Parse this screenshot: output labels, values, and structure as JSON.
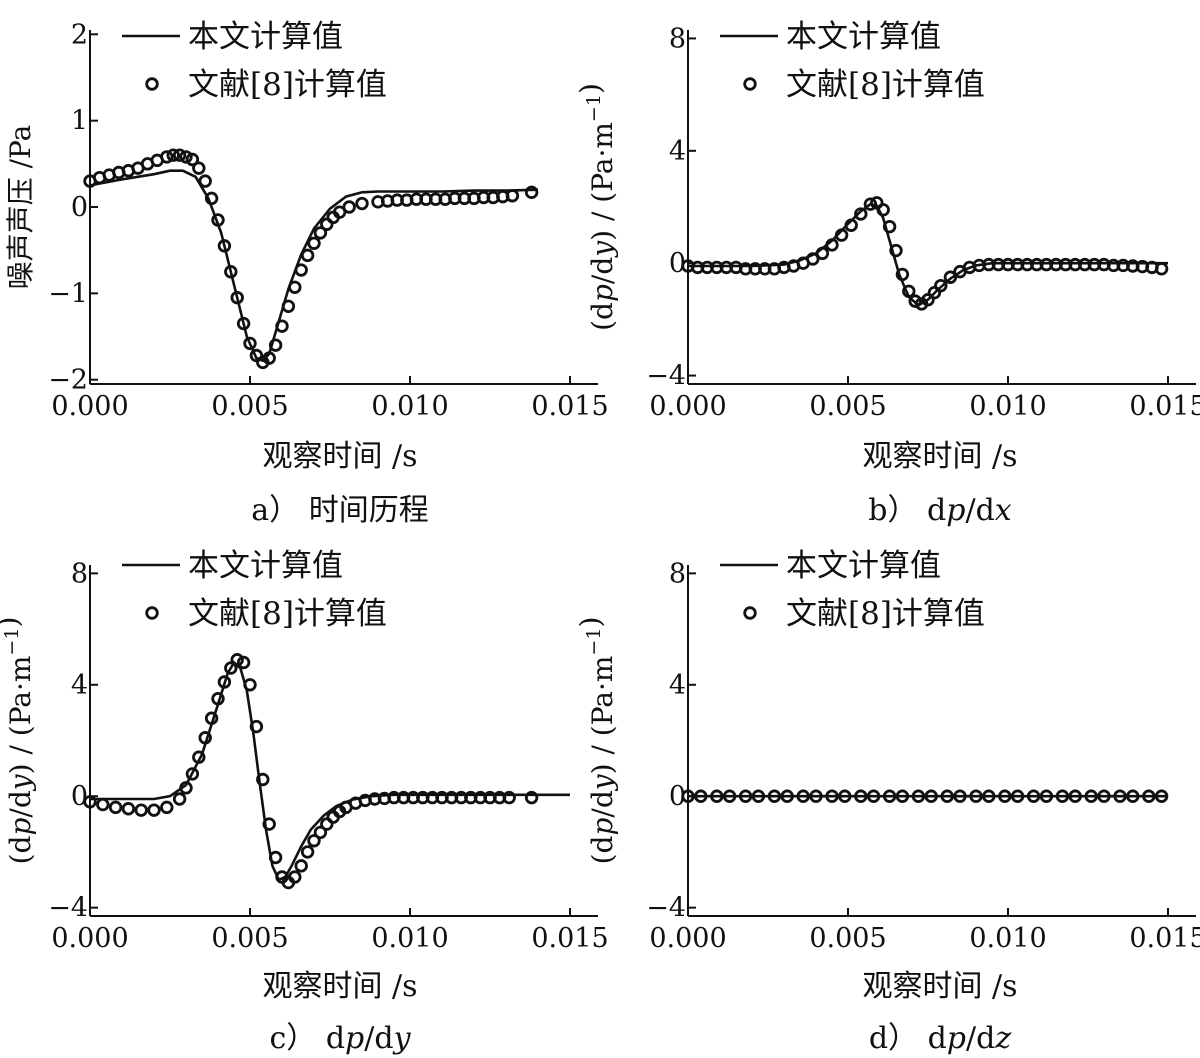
{
  "chart_data": [
    {
      "type": "line",
      "caption": "a） 时间历程",
      "xlabel": "观察时间 /s",
      "ylabel": "噪声声压 /Pa",
      "xlim": [
        0,
        0.015
      ],
      "ylim": [
        -2.05,
        2.05
      ],
      "xticks": [
        "0.000",
        "0.005",
        "0.010",
        "0.015"
      ],
      "yticks": [
        {
          "v": -2,
          "t": "−2"
        },
        {
          "v": -1,
          "t": "−1"
        },
        {
          "v": 0,
          "t": "0"
        },
        {
          "v": 1,
          "t": "1"
        },
        {
          "v": 2,
          "t": "2"
        }
      ],
      "legend": [
        "本文计算值",
        "文献[8]计算值"
      ],
      "series": [
        {
          "name": "本文计算值",
          "style": "line",
          "x": [
            0,
            0.001,
            0.002,
            0.0025,
            0.0029,
            0.0033,
            0.0037,
            0.0041,
            0.0045,
            0.0049,
            0.0052,
            0.0054,
            0.0056,
            0.0058,
            0.0062,
            0.0066,
            0.007,
            0.0075,
            0.008,
            0.0085,
            0.009,
            0.01,
            0.011,
            0.012,
            0.013,
            0.014
          ],
          "y": [
            0.25,
            0.32,
            0.38,
            0.42,
            0.42,
            0.35,
            0.1,
            -0.3,
            -0.9,
            -1.5,
            -1.75,
            -1.78,
            -1.7,
            -1.45,
            -0.95,
            -0.55,
            -0.25,
            -0.02,
            0.12,
            0.17,
            0.18,
            0.18,
            0.18,
            0.19,
            0.19,
            0.2
          ]
        },
        {
          "name": "文献[8]计算值",
          "style": "marker",
          "x": [
            0.0,
            0.0003,
            0.0006,
            0.0009,
            0.0012,
            0.0015,
            0.0018,
            0.0021,
            0.0024,
            0.0026,
            0.0028,
            0.003,
            0.0032,
            0.0034,
            0.0036,
            0.0038,
            0.004,
            0.0042,
            0.0044,
            0.0046,
            0.0048,
            0.005,
            0.0052,
            0.0054,
            0.0056,
            0.0058,
            0.006,
            0.0062,
            0.0064,
            0.0066,
            0.0068,
            0.007,
            0.0072,
            0.0074,
            0.0076,
            0.0078,
            0.0081,
            0.0085,
            0.009,
            0.0093,
            0.0096,
            0.0099,
            0.0102,
            0.0105,
            0.0108,
            0.0111,
            0.0114,
            0.0117,
            0.012,
            0.0123,
            0.0126,
            0.0129,
            0.0132,
            0.0138
          ],
          "y": [
            0.3,
            0.34,
            0.37,
            0.4,
            0.42,
            0.45,
            0.5,
            0.54,
            0.58,
            0.6,
            0.6,
            0.58,
            0.55,
            0.45,
            0.3,
            0.1,
            -0.15,
            -0.45,
            -0.75,
            -1.05,
            -1.35,
            -1.58,
            -1.72,
            -1.8,
            -1.75,
            -1.6,
            -1.38,
            -1.15,
            -0.93,
            -0.73,
            -0.56,
            -0.42,
            -0.3,
            -0.2,
            -0.12,
            -0.06,
            0.0,
            0.04,
            0.06,
            0.07,
            0.08,
            0.08,
            0.09,
            0.09,
            0.09,
            0.09,
            0.1,
            0.1,
            0.1,
            0.11,
            0.11,
            0.12,
            0.13,
            0.17
          ]
        }
      ]
    },
    {
      "type": "line",
      "caption": "b） dp/dx",
      "xlabel": "观察时间 /s",
      "ylabel": "(dp/dy) / (Pa·m−1)",
      "xlim": [
        0,
        0.015
      ],
      "ylim": [
        -4.3,
        8.3
      ],
      "xticks": [
        "0.000",
        "0.005",
        "0.010",
        "0.015"
      ],
      "yticks": [
        {
          "v": -4,
          "t": "−4"
        },
        {
          "v": 0,
          "t": "0"
        },
        {
          "v": 4,
          "t": "4"
        },
        {
          "v": 8,
          "t": "8"
        }
      ],
      "legend": [
        "本文计算值",
        "文献[8]计算值"
      ],
      "series": [
        {
          "name": "本文计算值",
          "style": "line",
          "x": [
            0,
            0.002,
            0.003,
            0.0035,
            0.004,
            0.0045,
            0.005,
            0.0054,
            0.0057,
            0.0059,
            0.0061,
            0.0063,
            0.0066,
            0.0069,
            0.0072,
            0.0075,
            0.0078,
            0.0082,
            0.0086,
            0.009,
            0.0095,
            0.01,
            0.012,
            0.015
          ],
          "y": [
            -0.1,
            -0.1,
            -0.05,
            0.1,
            0.35,
            0.8,
            1.4,
            1.85,
            2.1,
            2.05,
            1.6,
            0.8,
            -0.4,
            -1.2,
            -1.5,
            -1.3,
            -0.95,
            -0.55,
            -0.25,
            -0.08,
            0.0,
            0.0,
            0.0,
            0.0
          ]
        },
        {
          "name": "文献[8]计算值",
          "style": "marker",
          "x": [
            0.0,
            0.0003,
            0.0006,
            0.0009,
            0.0012,
            0.0015,
            0.0018,
            0.0021,
            0.0024,
            0.0027,
            0.003,
            0.0033,
            0.0036,
            0.0039,
            0.0042,
            0.0045,
            0.0048,
            0.0051,
            0.0054,
            0.0057,
            0.0059,
            0.0061,
            0.0063,
            0.0065,
            0.0067,
            0.0069,
            0.0071,
            0.0073,
            0.0075,
            0.0077,
            0.0079,
            0.0082,
            0.0085,
            0.0088,
            0.0091,
            0.0094,
            0.0097,
            0.01,
            0.0103,
            0.0106,
            0.0109,
            0.0112,
            0.0115,
            0.0118,
            0.0121,
            0.0124,
            0.0127,
            0.013,
            0.0133,
            0.0136,
            0.0139,
            0.0142,
            0.0145,
            0.0148
          ],
          "y": [
            -0.1,
            -0.15,
            -0.15,
            -0.15,
            -0.15,
            -0.15,
            -0.2,
            -0.2,
            -0.2,
            -0.2,
            -0.15,
            -0.1,
            0.0,
            0.15,
            0.35,
            0.65,
            1.0,
            1.35,
            1.75,
            2.1,
            2.15,
            1.9,
            1.3,
            0.45,
            -0.4,
            -1.0,
            -1.35,
            -1.45,
            -1.3,
            -1.05,
            -0.8,
            -0.5,
            -0.3,
            -0.15,
            -0.08,
            -0.05,
            -0.05,
            -0.05,
            -0.05,
            -0.05,
            -0.05,
            -0.05,
            -0.05,
            -0.05,
            -0.05,
            -0.05,
            -0.05,
            -0.05,
            -0.08,
            -0.08,
            -0.1,
            -0.12,
            -0.15,
            -0.2
          ]
        }
      ]
    },
    {
      "type": "line",
      "caption": "c） dp/dy",
      "xlabel": "观察时间 /s",
      "ylabel": "(dp/dy) / (Pa·m−1)",
      "xlim": [
        0,
        0.015
      ],
      "ylim": [
        -4.3,
        8.3
      ],
      "xticks": [
        "0.000",
        "0.005",
        "0.010",
        "0.015"
      ],
      "yticks": [
        {
          "v": -4,
          "t": "−4"
        },
        {
          "v": 0,
          "t": "0"
        },
        {
          "v": 4,
          "t": "4"
        },
        {
          "v": 8,
          "t": "8"
        }
      ],
      "legend": [
        "本文计算值",
        "文献[8]计算值"
      ],
      "series": [
        {
          "name": "本文计算值",
          "style": "line",
          "x": [
            0,
            0.002,
            0.0025,
            0.003,
            0.0035,
            0.004,
            0.0043,
            0.0045,
            0.0047,
            0.0049,
            0.0051,
            0.0053,
            0.0055,
            0.0057,
            0.0059,
            0.0061,
            0.0063,
            0.0066,
            0.0069,
            0.0073,
            0.0077,
            0.0082,
            0.0088,
            0.0095,
            0.0105,
            0.012,
            0.015
          ],
          "y": [
            -0.1,
            -0.1,
            0.0,
            0.4,
            1.5,
            3.3,
            4.4,
            4.8,
            4.6,
            3.8,
            2.3,
            0.5,
            -1.2,
            -2.5,
            -3.0,
            -2.9,
            -2.5,
            -1.8,
            -1.2,
            -0.7,
            -0.35,
            -0.12,
            0.0,
            0.05,
            0.05,
            0.05,
            0.05
          ]
        },
        {
          "name": "文献[8]计算值",
          "style": "marker",
          "x": [
            0.0,
            0.0004,
            0.0008,
            0.0012,
            0.0016,
            0.002,
            0.0024,
            0.0028,
            0.003,
            0.0032,
            0.0034,
            0.0036,
            0.0038,
            0.004,
            0.0042,
            0.0044,
            0.0046,
            0.0048,
            0.005,
            0.0052,
            0.0054,
            0.0056,
            0.0058,
            0.006,
            0.0062,
            0.0064,
            0.0066,
            0.0068,
            0.007,
            0.0072,
            0.0074,
            0.0076,
            0.0078,
            0.008,
            0.0083,
            0.0086,
            0.0089,
            0.0092,
            0.0095,
            0.0098,
            0.0101,
            0.0104,
            0.0107,
            0.011,
            0.0113,
            0.0116,
            0.0119,
            0.0122,
            0.0125,
            0.0128,
            0.0131,
            0.0138
          ],
          "y": [
            -0.2,
            -0.3,
            -0.4,
            -0.45,
            -0.5,
            -0.5,
            -0.4,
            -0.1,
            0.3,
            0.8,
            1.4,
            2.1,
            2.8,
            3.5,
            4.1,
            4.6,
            4.9,
            4.8,
            4.0,
            2.5,
            0.6,
            -1.0,
            -2.2,
            -2.9,
            -3.1,
            -2.9,
            -2.5,
            -2.0,
            -1.6,
            -1.3,
            -1.0,
            -0.75,
            -0.55,
            -0.4,
            -0.25,
            -0.15,
            -0.1,
            -0.08,
            -0.05,
            -0.05,
            -0.05,
            -0.05,
            -0.05,
            -0.05,
            -0.05,
            -0.05,
            -0.05,
            -0.05,
            -0.05,
            -0.05,
            -0.05,
            -0.05
          ]
        }
      ]
    },
    {
      "type": "line",
      "caption": "d） dp/dz",
      "xlabel": "观察时间 /s",
      "ylabel": "(dp/dy) / (Pa·m−1)",
      "xlim": [
        0,
        0.015
      ],
      "ylim": [
        -4.3,
        8.3
      ],
      "xticks": [
        "0.000",
        "0.005",
        "0.010",
        "0.015"
      ],
      "yticks": [
        {
          "v": -4,
          "t": "−4"
        },
        {
          "v": 0,
          "t": "0"
        },
        {
          "v": 4,
          "t": "4"
        },
        {
          "v": 8,
          "t": "8"
        }
      ],
      "legend": [
        "本文计算值",
        "文献[8]计算值"
      ],
      "series": [
        {
          "name": "本文计算值",
          "style": "line",
          "x": [
            0,
            0.015
          ],
          "y": [
            0,
            0
          ]
        },
        {
          "name": "文献[8]计算值",
          "style": "marker",
          "x": [
            0.0,
            0.0004,
            0.0009,
            0.0013,
            0.0018,
            0.0022,
            0.0027,
            0.0031,
            0.0036,
            0.004,
            0.0045,
            0.0049,
            0.0054,
            0.0058,
            0.0063,
            0.0067,
            0.0072,
            0.0076,
            0.0081,
            0.0085,
            0.009,
            0.0094,
            0.0099,
            0.0103,
            0.0108,
            0.0112,
            0.0117,
            0.0121,
            0.0126,
            0.013,
            0.0135,
            0.0139,
            0.0144,
            0.0148
          ],
          "y": [
            0,
            0,
            0,
            0,
            0,
            0,
            0,
            0,
            0,
            0,
            0,
            0,
            0,
            0,
            0,
            0,
            0,
            0,
            0,
            0,
            0,
            0,
            0,
            0,
            0,
            0,
            0,
            0,
            0,
            0,
            0,
            0,
            0,
            0
          ]
        }
      ]
    }
  ]
}
